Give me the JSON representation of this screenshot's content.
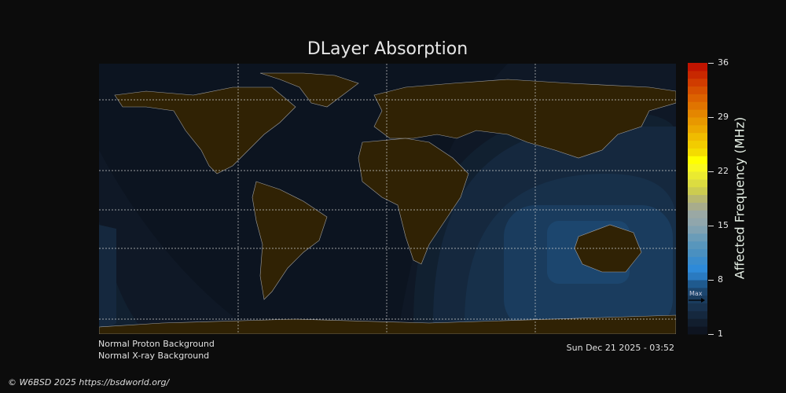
{
  "title": "DLayer Absorption",
  "colorbar": {
    "label": "Affected Frequency (MHz)",
    "ticks": [
      "36",
      "29",
      "22",
      "15",
      "8",
      "1"
    ],
    "min": 1,
    "max": 36,
    "marker_label": "Max",
    "marker_value": 5,
    "colors": [
      "#0e1420",
      "#121e2e",
      "#15283e",
      "#18324e",
      "#1a3c5e",
      "#1c466e",
      "#1f5a8e",
      "#2a7ac0",
      "#2e8ad8",
      "#3a8ccc",
      "#4a90c0",
      "#5896bc",
      "#6a9cb8",
      "#80a2b2",
      "#90a6ac",
      "#9aa8a4",
      "#a8ac8c",
      "#b8b870",
      "#cccc50",
      "#dcdc40",
      "#eaea30",
      "#f8f820",
      "#ffff00",
      "#f4dc00",
      "#f2cc00",
      "#f0bc00",
      "#eca800",
      "#e89800",
      "#e48600",
      "#e07400",
      "#dc6200",
      "#d65000",
      "#d03c00",
      "#c82800",
      "#c01400"
    ]
  },
  "status": {
    "proton": "Normal Proton Background",
    "xray": "Normal X-ray Background",
    "timestamp": "Sun Dec 21 2025 - 03:52"
  },
  "footer": "© W6BSD 2025 https://bsdworld.org/",
  "colors": {
    "ocean": "#0c1420",
    "land": "#302204",
    "coast": "#a0a0a0"
  }
}
